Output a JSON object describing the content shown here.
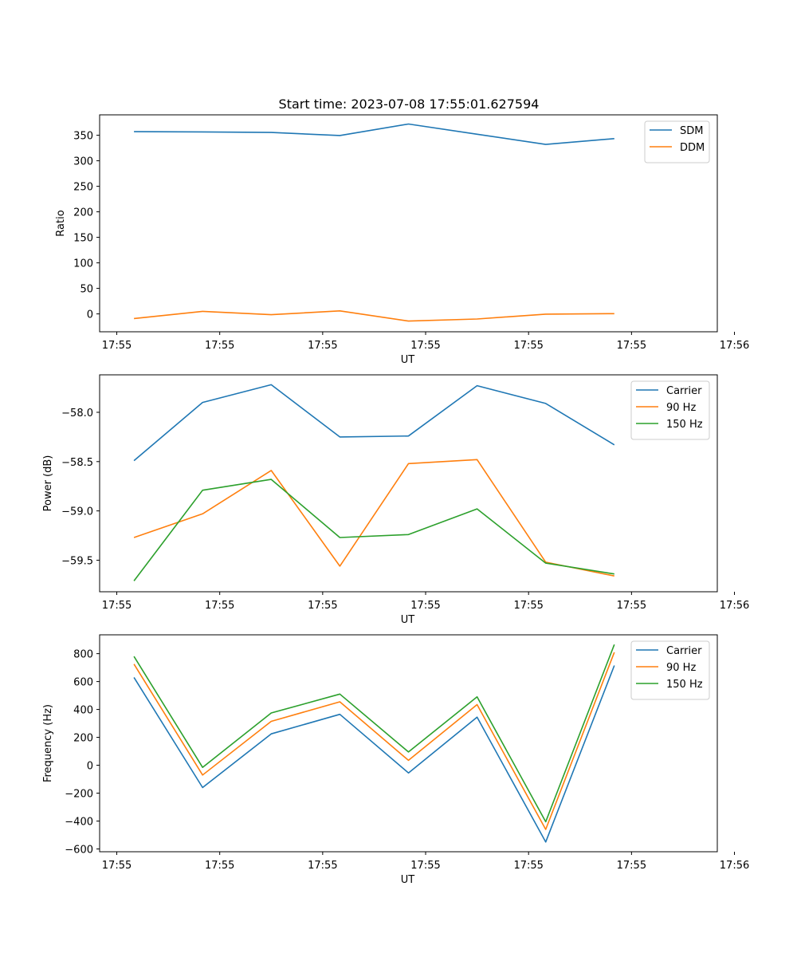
{
  "figure_title": "Start time: 2023-07-08 17:55:01.627594",
  "chart_data": [
    {
      "type": "line",
      "title": "Start time: 2023-07-08 17:55:01.627594",
      "xlabel": "UT",
      "ylabel": "Ratio",
      "x": [
        0,
        1,
        2,
        3,
        4,
        5,
        6,
        7
      ],
      "xlim": [
        -0.5,
        8.5
      ],
      "xticks": [
        -0.25,
        1.25,
        2.75,
        4.25,
        5.75,
        7.25,
        8.75
      ],
      "xtick_labels": [
        "17:55",
        "17:55",
        "17:55",
        "17:55",
        "17:55",
        "17:55",
        "17:56"
      ],
      "ylim": [
        -35,
        390
      ],
      "yticks": [
        0,
        50,
        100,
        150,
        200,
        250,
        300,
        350
      ],
      "ytick_labels": [
        "0",
        "50",
        "100",
        "150",
        "200",
        "250",
        "300",
        "350"
      ],
      "legend_position": "top-right",
      "series": [
        {
          "name": "SDM",
          "color": "#1f77b4",
          "values": [
            357,
            356.5,
            355.5,
            349.5,
            372,
            352,
            332,
            343.5
          ]
        },
        {
          "name": "DDM",
          "color": "#ff7f0e",
          "values": [
            -9,
            5,
            -1.5,
            6,
            -14,
            -10,
            -0.5,
            0.5
          ]
        }
      ]
    },
    {
      "type": "line",
      "title": "",
      "xlabel": "UT",
      "ylabel": "Power (dB)",
      "x": [
        0,
        1,
        2,
        3,
        4,
        5,
        6,
        7
      ],
      "xlim": [
        -0.5,
        8.5
      ],
      "xticks": [
        -0.25,
        1.25,
        2.75,
        4.25,
        5.75,
        7.25,
        8.75
      ],
      "xtick_labels": [
        "17:55",
        "17:55",
        "17:55",
        "17:55",
        "17:55",
        "17:55",
        "17:56"
      ],
      "ylim": [
        -59.82,
        -57.62
      ],
      "yticks": [
        -59.5,
        -59.0,
        -58.5,
        -58.0
      ],
      "ytick_labels": [
        "−59.5",
        "−59.0",
        "−58.5",
        "−58.0"
      ],
      "legend_position": "top-right",
      "series": [
        {
          "name": "Carrier",
          "color": "#1f77b4",
          "values": [
            -58.49,
            -57.9,
            -57.72,
            -58.25,
            -58.24,
            -57.73,
            -57.91,
            -58.33
          ]
        },
        {
          "name": "90 Hz",
          "color": "#ff7f0e",
          "values": [
            -59.27,
            -59.03,
            -58.59,
            -59.56,
            -58.52,
            -58.48,
            -59.52,
            -59.66
          ]
        },
        {
          "name": "150 Hz",
          "color": "#2ca02c",
          "values": [
            -59.71,
            -58.79,
            -58.68,
            -59.27,
            -59.24,
            -58.98,
            -59.53,
            -59.64
          ]
        }
      ]
    },
    {
      "type": "line",
      "title": "",
      "xlabel": "UT",
      "ylabel": "Frequency (Hz)",
      "x": [
        0,
        1,
        2,
        3,
        4,
        5,
        6,
        7
      ],
      "xlim": [
        -0.5,
        8.5
      ],
      "xticks": [
        -0.25,
        1.25,
        2.75,
        4.25,
        5.75,
        7.25,
        8.75
      ],
      "xtick_labels": [
        "17:55",
        "17:55",
        "17:55",
        "17:55",
        "17:55",
        "17:55",
        "17:56"
      ],
      "ylim": [
        -620,
        935
      ],
      "yticks": [
        -600,
        -400,
        -200,
        0,
        200,
        400,
        600,
        800
      ],
      "ytick_labels": [
        "−600",
        "−400",
        "−200",
        "0",
        "200",
        "400",
        "600",
        "800"
      ],
      "legend_position": "top-right",
      "series": [
        {
          "name": "Carrier",
          "color": "#1f77b4",
          "values": [
            630,
            -160,
            225,
            365,
            -55,
            345,
            -550,
            715
          ]
        },
        {
          "name": "90 Hz",
          "color": "#ff7f0e",
          "values": [
            725,
            -70,
            315,
            455,
            35,
            435,
            -460,
            810
          ]
        },
        {
          "name": "150 Hz",
          "color": "#2ca02c",
          "values": [
            780,
            -15,
            375,
            510,
            95,
            490,
            -405,
            865
          ]
        }
      ]
    }
  ]
}
